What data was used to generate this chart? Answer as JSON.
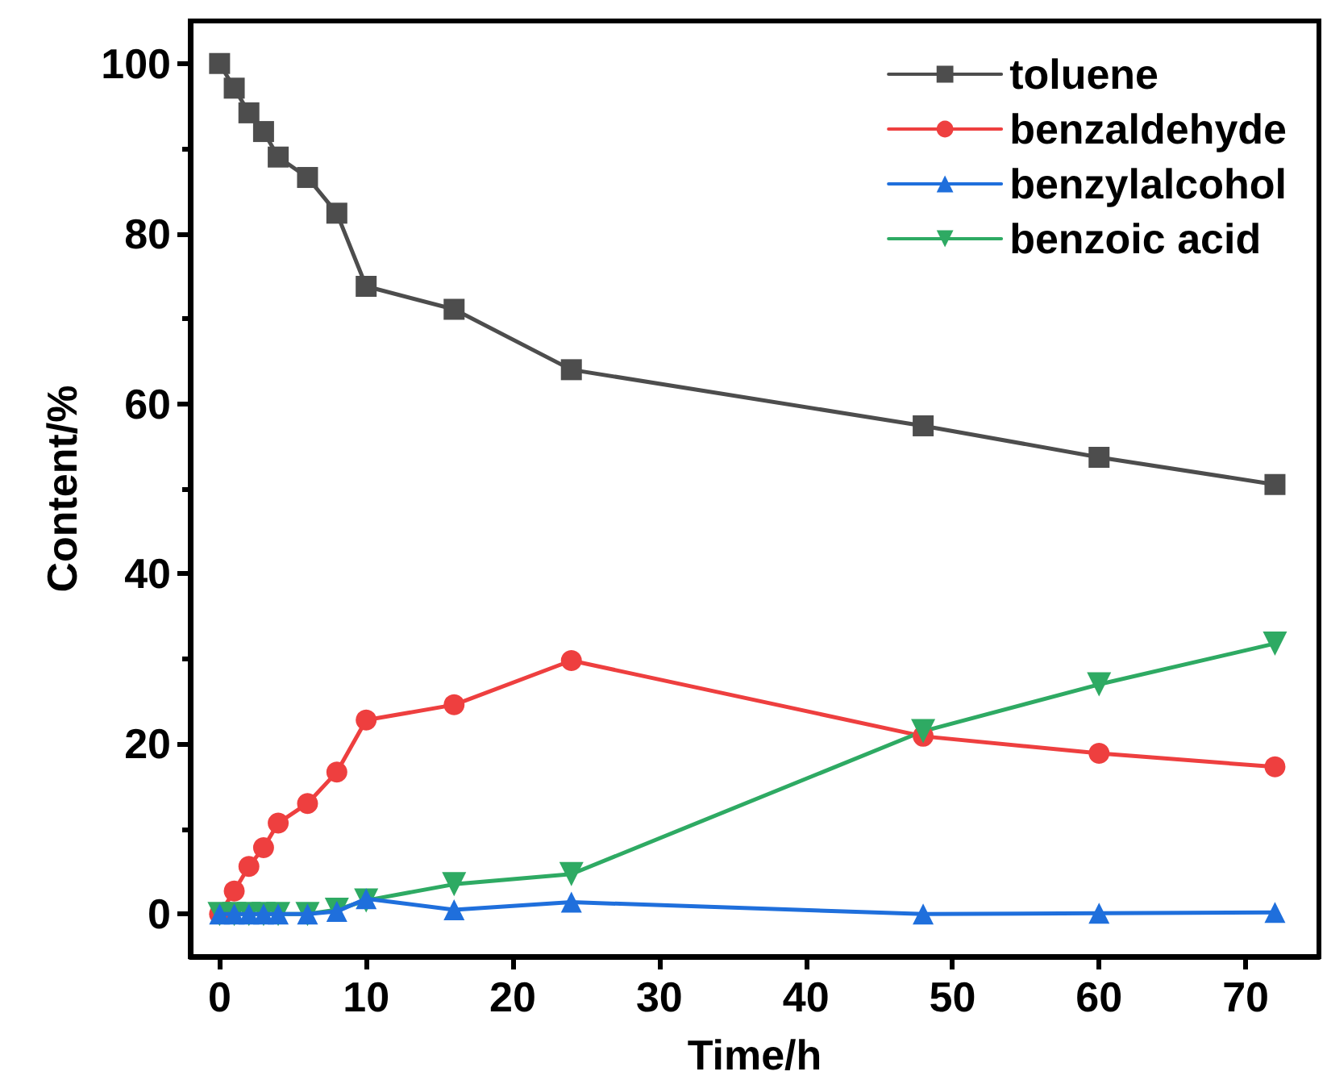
{
  "chart_data": {
    "type": "line",
    "xlabel": "Time/h",
    "ylabel": "Content/%",
    "x": [
      0,
      1,
      2,
      3,
      4,
      6,
      8,
      10,
      16,
      24,
      48,
      60,
      72
    ],
    "series": [
      {
        "name": "toluene",
        "color": "#4d4d4d",
        "marker": "square",
        "values": [
          100,
          97.1,
          94.2,
          92,
          89,
          86.6,
          82.4,
          73.8,
          71.1,
          64,
          57.4,
          53.7,
          50.5
        ]
      },
      {
        "name": "benzaldehyde",
        "color": "#ee3f3f",
        "marker": "circle",
        "values": [
          0,
          2.7,
          5.6,
          7.8,
          10.7,
          13,
          16.7,
          22.8,
          24.6,
          29.8,
          20.9,
          18.9,
          17.3
        ]
      },
      {
        "name": "benzylalcohol",
        "color": "#1f6fdc",
        "marker": "triangle",
        "values": [
          0,
          0,
          0,
          0,
          0,
          0,
          0.3,
          1.8,
          0.5,
          1.4,
          0,
          0.1,
          0.2
        ]
      },
      {
        "name": "benzoic acid",
        "color": "#2eaa63",
        "marker": "triangle-down",
        "values": [
          0,
          0,
          0,
          0,
          0,
          0,
          0.5,
          1.6,
          3.5,
          4.7,
          21.5,
          27,
          31.8
        ]
      }
    ],
    "xlim": [
      -2,
      75
    ],
    "xticks": [
      0,
      10,
      20,
      30,
      40,
      50,
      60,
      70
    ],
    "ylim": [
      -5,
      105
    ],
    "yticks": [
      0,
      20,
      40,
      60,
      80,
      100
    ],
    "grid": false,
    "legend": "top right",
    "line_style": "solid"
  }
}
